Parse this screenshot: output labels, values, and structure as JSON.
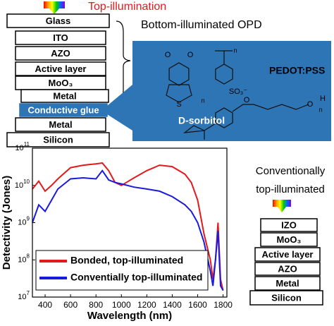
{
  "top_illumination": "Top-illumination",
  "bottom_label": "Bottom-illuminated OPD",
  "left_stack": [
    "Glass",
    "ITO",
    "AZO",
    "Active layer",
    "MoO₃",
    "Metal",
    "Conductive glue",
    "Metal",
    "Silicon"
  ],
  "structures": {
    "pedot_pss": "PEDOT:PSS",
    "d_sorbitol": "D-sorbitol",
    "atoms": [
      "O",
      "O",
      "S",
      "n",
      "SO₃⁻",
      "n",
      "O",
      "O",
      "H",
      "n"
    ]
  },
  "right_title": [
    "Conventionally",
    "top-illuminated"
  ],
  "right_stack": [
    "IZO",
    "MoO₃",
    "Active layer",
    "AZO",
    "Metal",
    "Silicon"
  ],
  "chart_data": {
    "type": "line",
    "x_label": "Wavelength (nm)",
    "y_label": "Detectivity (Jones)",
    "x": [
      300,
      350,
      400,
      450,
      500,
      600,
      700,
      800,
      850,
      900,
      950,
      1000,
      1100,
      1200,
      1300,
      1400,
      1500,
      1550,
      1600,
      1650,
      1700,
      1720,
      1740,
      1760,
      1780,
      1800
    ],
    "series": [
      {
        "name": "Bonded, top-illuminated",
        "color": "#e31a1c",
        "values": [
          8000000000,
          13000000000,
          7000000000,
          10000000000,
          15000000000,
          30000000000,
          35000000000,
          38000000000,
          40000000000,
          25000000000,
          12000000000,
          10000000000,
          16000000000,
          25000000000,
          35000000000,
          32000000000,
          20000000000,
          12000000000,
          4000000000,
          500000000,
          100000000,
          30000000,
          100000000,
          1000000000,
          30000000,
          15000000
        ]
      },
      {
        "name": "Conventially top-illuminated",
        "color": "#1a1adf",
        "values": [
          1000000000,
          3000000000,
          2000000000,
          4000000000,
          8000000000,
          15000000000,
          16000000000,
          15000000000,
          25000000000,
          14000000000,
          12000000000,
          11000000000,
          9000000000,
          8000000000,
          7000000000,
          5000000000,
          3000000000,
          2000000000,
          1000000000,
          300000000,
          50000000,
          20000000,
          100000000,
          600000000,
          20000000,
          15000000
        ]
      }
    ],
    "xlim": [
      300,
      1830
    ],
    "xticks": [
      400,
      600,
      800,
      1000,
      1200,
      1400,
      1600,
      1800
    ],
    "ylim": [
      10000000,
      100000000000
    ],
    "log_y": true,
    "yticks": [
      {
        "value": 10000000,
        "label": "10",
        "exponent": "7"
      },
      {
        "value": 100000000,
        "label": "10",
        "exponent": "8"
      },
      {
        "value": 1000000000,
        "label": "10",
        "exponent": "9"
      },
      {
        "value": 10000000000,
        "label": "10",
        "exponent": "10"
      },
      {
        "value": 100000000000,
        "label": "10",
        "exponent": "11"
      }
    ]
  }
}
